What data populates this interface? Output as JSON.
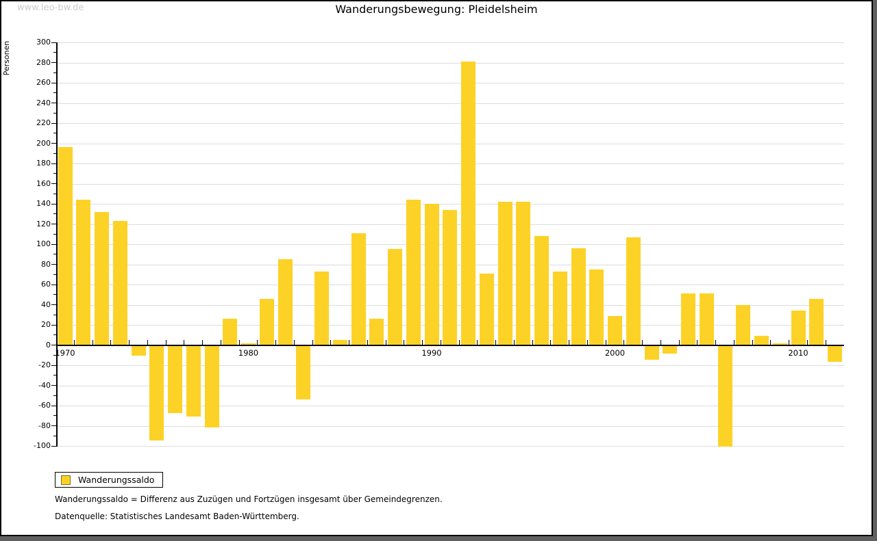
{
  "watermark": "www.leo-bw.de",
  "title": "Wanderungsbewegung: Pleidelsheim",
  "legend": {
    "label": "Wanderungssaldo"
  },
  "footnotes": {
    "definition": "Wanderungssaldo = Differenz aus Zuzügen und Fortzügen insgesamt über Gemeindegrenzen.",
    "source": "Datenquelle: Statistisches Landesamt Baden-Württemberg."
  },
  "colors": {
    "bar": "#fcd226",
    "grid": "#dcdcdc",
    "axis": "#000000",
    "watermark": "#cccccc",
    "frame_shadow": "#606060"
  },
  "chart_data": {
    "type": "bar",
    "title": "Wanderungsbewegung: Pleidelsheim",
    "xlabel": "",
    "ylabel": "Personen",
    "ylim": [
      -100,
      300
    ],
    "ytick_step": 20,
    "grid": true,
    "legend_position": "bottom-left",
    "yticks": [
      300,
      280,
      260,
      240,
      220,
      200,
      180,
      160,
      140,
      120,
      100,
      80,
      60,
      40,
      20,
      0,
      -20,
      -40,
      -60,
      -80,
      -100
    ],
    "xticks": [
      1970,
      1980,
      1990,
      2000,
      2010
    ],
    "categories": [
      1970,
      1971,
      1972,
      1973,
      1974,
      1975,
      1976,
      1977,
      1978,
      1979,
      1980,
      1981,
      1982,
      1983,
      1984,
      1985,
      1986,
      1987,
      1988,
      1989,
      1990,
      1991,
      1992,
      1993,
      1994,
      1995,
      1996,
      1997,
      1998,
      1999,
      2000,
      2001,
      2002,
      2003,
      2004,
      2005,
      2006,
      2007,
      2008,
      2009,
      2010,
      2011,
      2012
    ],
    "series": [
      {
        "name": "Wanderungssaldo",
        "values": [
          196,
          144,
          132,
          123,
          -10,
          -94,
          -67,
          -70,
          -81,
          26,
          2,
          46,
          85,
          -53,
          73,
          5,
          111,
          26,
          95,
          144,
          140,
          134,
          281,
          71,
          142,
          142,
          108,
          73,
          96,
          75,
          29,
          107,
          -14,
          -8,
          51,
          51,
          -100,
          40,
          9,
          2,
          34,
          46,
          -16
        ]
      }
    ]
  }
}
